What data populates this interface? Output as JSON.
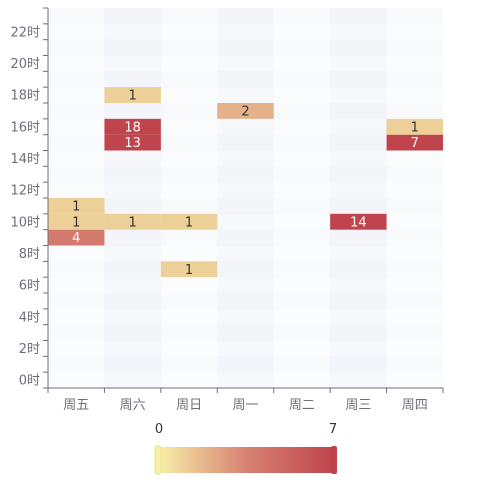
{
  "chart_data": {
    "type": "heatmap",
    "x_categories": [
      "周五",
      "周六",
      "周日",
      "周一",
      "周二",
      "周三",
      "周四"
    ],
    "y_categories": [
      "0时",
      "1时",
      "2时",
      "3时",
      "4时",
      "5时",
      "6时",
      "7时",
      "8时",
      "9时",
      "10时",
      "11时",
      "12时",
      "13时",
      "14时",
      "15时",
      "16时",
      "17时",
      "18时",
      "19时",
      "20时",
      "21时",
      "22时",
      "23时"
    ],
    "y_tick_labels_shown": [
      "0时",
      "2时",
      "4时",
      "6时",
      "8时",
      "10时",
      "12时",
      "14时",
      "16时",
      "18时",
      "20时",
      "22时"
    ],
    "cells": [
      {
        "x": "周五",
        "y": "9时",
        "value": 4
      },
      {
        "x": "周五",
        "y": "10时",
        "value": 1
      },
      {
        "x": "周五",
        "y": "11时",
        "value": 1
      },
      {
        "x": "周六",
        "y": "10时",
        "value": 1
      },
      {
        "x": "周六",
        "y": "15时",
        "value": 13
      },
      {
        "x": "周六",
        "y": "16时",
        "value": 18
      },
      {
        "x": "周六",
        "y": "18时",
        "value": 1
      },
      {
        "x": "周日",
        "y": "7时",
        "value": 1
      },
      {
        "x": "周日",
        "y": "10时",
        "value": 1
      },
      {
        "x": "周一",
        "y": "17时",
        "value": 2
      },
      {
        "x": "周三",
        "y": "10时",
        "value": 14
      },
      {
        "x": "周四",
        "y": "15时",
        "value": 7
      },
      {
        "x": "周四",
        "y": "16时",
        "value": 1
      }
    ],
    "visual_map": {
      "min": 0,
      "max": 7,
      "min_label": "0",
      "max_label": "7",
      "colors": [
        "#f6efa6",
        "#d88273",
        "#bf444c"
      ]
    },
    "split_area_colors": [
      "rgba(250,250,250,0.3)",
      "rgba(200,200,200,0.3)"
    ],
    "cell_label_colors": {
      "light": "#333333",
      "dark": "#ffffff"
    },
    "axis_color": "#6e7079"
  }
}
